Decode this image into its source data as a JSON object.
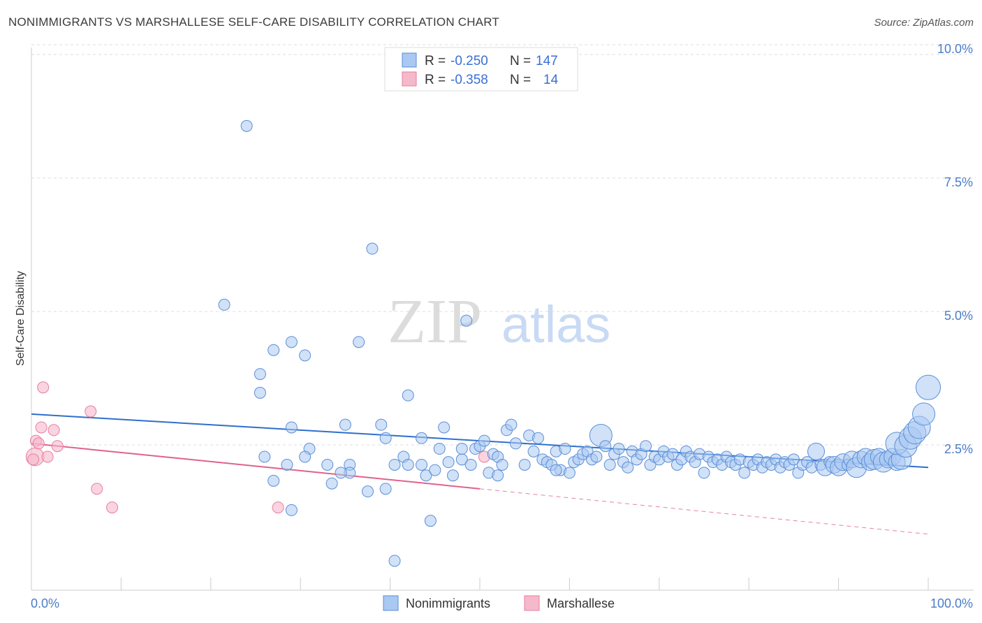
{
  "title": "NONIMMIGRANTS VS MARSHALLESE SELF-CARE DISABILITY CORRELATION CHART",
  "source": "Source: ZipAtlas.com",
  "watermark": {
    "zip": "ZIP",
    "atlas": "atlas"
  },
  "colors": {
    "blue_fill": "#a9c8f2",
    "blue_stroke": "#5b8fd6",
    "blue_line": "#2e6fcc",
    "pink_fill": "#f6b8cb",
    "pink_stroke": "#e67fa0",
    "pink_line": "#e0628c",
    "tick_text": "#4a7cc9",
    "grid": "#dddddd"
  },
  "legend": {
    "rows": [
      {
        "r_label": "R = ",
        "r_value": "-0.250",
        "n_label": "N = ",
        "n_value": "147",
        "color": "blue"
      },
      {
        "r_label": "R = ",
        "r_value": "-0.358",
        "n_label": "N = ",
        "n_value": "14",
        "color": "pink"
      }
    ]
  },
  "bottom_legend": [
    {
      "label": "Nonimmigrants",
      "color": "blue"
    },
    {
      "label": "Marshallese",
      "color": "pink"
    }
  ],
  "chart_data": {
    "type": "scatter",
    "xlabel": "",
    "ylabel": "Self-Care Disability",
    "xlim": [
      0,
      100
    ],
    "ylim": [
      0,
      10.5
    ],
    "x_tick_labels": [
      {
        "value": 0,
        "label": "0.0%"
      },
      {
        "value": 100,
        "label": "100.0%"
      }
    ],
    "y_ticks": [
      {
        "value": 2.5,
        "label": "2.5%"
      },
      {
        "value": 5.0,
        "label": "5.0%"
      },
      {
        "value": 7.5,
        "label": "7.5%"
      },
      {
        "value": 10.0,
        "label": "10.0%"
      }
    ],
    "grid": "horizontal dashed",
    "legend_placement": "top-center",
    "series": [
      {
        "name": "Nonimmigrants",
        "color": "blue",
        "trend": {
          "x": [
            0,
            100
          ],
          "y": [
            3.3,
            2.3
          ]
        },
        "points": [
          [
            24,
            8.7,
            1
          ],
          [
            38,
            6.4,
            1
          ],
          [
            21.5,
            5.35,
            1
          ],
          [
            48.5,
            5.05,
            1
          ],
          [
            27,
            4.5,
            1
          ],
          [
            29,
            4.65,
            1
          ],
          [
            36.5,
            4.65,
            1
          ],
          [
            30.5,
            4.4,
            1
          ],
          [
            25.5,
            4.05,
            1
          ],
          [
            25.5,
            3.7,
            1
          ],
          [
            42,
            3.65,
            1
          ],
          [
            35,
            3.1,
            1
          ],
          [
            39,
            3.1,
            1
          ],
          [
            46,
            3.05,
            1
          ],
          [
            29,
            3.05,
            1
          ],
          [
            39.5,
            2.85,
            1
          ],
          [
            43.5,
            2.85,
            1
          ],
          [
            31,
            2.65,
            1
          ],
          [
            30.5,
            2.5,
            1
          ],
          [
            26,
            2.5,
            1
          ],
          [
            28.5,
            2.35,
            1
          ],
          [
            33,
            2.35,
            1
          ],
          [
            35.5,
            2.35,
            1
          ],
          [
            35.5,
            2.2,
            1
          ],
          [
            34.5,
            2.2,
            1
          ],
          [
            33.5,
            2.0,
            1
          ],
          [
            27,
            2.05,
            1
          ],
          [
            37.5,
            1.85,
            1
          ],
          [
            39.5,
            1.9,
            1
          ],
          [
            29,
            1.5,
            1
          ],
          [
            44.5,
            1.3,
            1
          ],
          [
            40.5,
            0.55,
            1
          ],
          [
            40.5,
            2.35,
            1
          ],
          [
            41.5,
            2.5,
            1
          ],
          [
            42,
            2.35,
            1
          ],
          [
            43.5,
            2.35,
            1
          ],
          [
            44,
            2.15,
            1
          ],
          [
            45,
            2.25,
            1
          ],
          [
            45.5,
            2.65,
            1
          ],
          [
            46.5,
            2.4,
            1
          ],
          [
            47,
            2.15,
            1
          ],
          [
            48,
            2.45,
            1
          ],
          [
            48,
            2.65,
            1
          ],
          [
            49,
            2.35,
            1
          ],
          [
            49.5,
            2.65,
            1
          ],
          [
            50,
            2.7,
            1
          ],
          [
            50.5,
            2.8,
            1
          ],
          [
            51,
            2.2,
            1
          ],
          [
            51.5,
            2.55,
            1
          ],
          [
            52,
            2.5,
            1
          ],
          [
            52.5,
            2.35,
            1
          ],
          [
            53,
            3.0,
            1
          ],
          [
            53.5,
            3.1,
            1
          ],
          [
            54,
            2.75,
            1
          ],
          [
            55,
            2.35,
            1
          ],
          [
            55.5,
            2.9,
            1
          ],
          [
            56,
            2.6,
            1
          ],
          [
            56.5,
            2.85,
            1
          ],
          [
            57,
            2.45,
            1
          ],
          [
            57.5,
            2.4,
            1
          ],
          [
            58,
            2.35,
            1
          ],
          [
            58.5,
            2.6,
            1
          ],
          [
            59,
            2.25,
            1
          ],
          [
            59.5,
            2.65,
            1
          ],
          [
            60,
            2.2,
            1
          ],
          [
            60.5,
            2.4,
            1
          ],
          [
            61,
            2.45,
            1
          ],
          [
            61.5,
            2.55,
            1
          ],
          [
            62,
            2.6,
            1
          ],
          [
            62.5,
            2.45,
            1
          ],
          [
            63,
            2.5,
            1
          ],
          [
            63.5,
            2.9,
            2
          ],
          [
            64,
            2.7,
            1
          ],
          [
            64.5,
            2.35,
            1
          ],
          [
            65,
            2.55,
            1
          ],
          [
            65.5,
            2.65,
            1
          ],
          [
            66,
            2.4,
            1
          ],
          [
            66.5,
            2.3,
            1
          ],
          [
            67,
            2.6,
            1
          ],
          [
            67.5,
            2.45,
            1
          ],
          [
            68,
            2.55,
            1
          ],
          [
            68.5,
            2.7,
            1
          ],
          [
            69,
            2.35,
            1
          ],
          [
            69.5,
            2.5,
            1
          ],
          [
            70,
            2.45,
            1
          ],
          [
            70.5,
            2.6,
            1
          ],
          [
            71,
            2.5,
            1
          ],
          [
            71.5,
            2.55,
            1
          ],
          [
            72,
            2.35,
            1
          ],
          [
            72.5,
            2.45,
            1
          ],
          [
            73,
            2.6,
            1
          ],
          [
            73.5,
            2.5,
            1
          ],
          [
            74,
            2.4,
            1
          ],
          [
            74.5,
            2.55,
            1
          ],
          [
            75,
            2.2,
            1
          ],
          [
            75.5,
            2.5,
            1
          ],
          [
            76,
            2.4,
            1
          ],
          [
            76.5,
            2.45,
            1
          ],
          [
            77,
            2.35,
            1
          ],
          [
            77.5,
            2.5,
            1
          ],
          [
            78,
            2.4,
            1
          ],
          [
            78.5,
            2.35,
            1
          ],
          [
            79,
            2.45,
            1
          ],
          [
            79.5,
            2.2,
            1
          ],
          [
            80,
            2.4,
            1
          ],
          [
            80.5,
            2.35,
            1
          ],
          [
            81,
            2.45,
            1
          ],
          [
            81.5,
            2.3,
            1
          ],
          [
            82,
            2.4,
            1
          ],
          [
            82.5,
            2.35,
            1
          ],
          [
            83,
            2.45,
            1
          ],
          [
            83.5,
            2.3,
            1
          ],
          [
            84,
            2.4,
            1
          ],
          [
            84.5,
            2.35,
            1
          ],
          [
            85,
            2.45,
            1
          ],
          [
            85.5,
            2.2,
            1
          ],
          [
            86,
            2.35,
            1
          ],
          [
            86.5,
            2.4,
            1
          ],
          [
            87,
            2.3,
            1
          ],
          [
            87.5,
            2.6,
            1.5
          ],
          [
            88,
            2.35,
            1
          ],
          [
            88.5,
            2.3,
            1.5
          ],
          [
            89,
            2.4,
            1
          ],
          [
            89.5,
            2.35,
            1.5
          ],
          [
            90,
            2.3,
            1.5
          ],
          [
            90.5,
            2.4,
            1.5
          ],
          [
            91,
            2.35,
            1
          ],
          [
            91.5,
            2.45,
            1.5
          ],
          [
            92,
            2.3,
            1.8
          ],
          [
            92.5,
            2.45,
            1.5
          ],
          [
            93,
            2.5,
            1.5
          ],
          [
            93.5,
            2.4,
            1.5
          ],
          [
            94,
            2.45,
            1.8
          ],
          [
            94.5,
            2.5,
            1.5
          ],
          [
            95,
            2.4,
            1.8
          ],
          [
            95.5,
            2.45,
            1.5
          ],
          [
            96,
            2.5,
            1.5
          ],
          [
            96.5,
            2.4,
            1.5
          ],
          [
            97,
            2.45,
            1.8
          ],
          [
            96.5,
            2.75,
            2
          ],
          [
            97.5,
            2.7,
            2
          ],
          [
            98,
            2.85,
            2
          ],
          [
            98.5,
            2.95,
            2
          ],
          [
            99,
            3.05,
            2
          ],
          [
            99.5,
            3.3,
            2
          ],
          [
            100,
            3.8,
            2.2
          ],
          [
            58.5,
            2.25,
            1
          ],
          [
            52,
            2.15,
            1
          ]
        ]
      },
      {
        "name": "Marshallese",
        "color": "pink",
        "trend": {
          "x": [
            0,
            50
          ],
          "y": [
            2.75,
            1.9
          ]
        },
        "trend_extension": {
          "x": [
            50,
            100
          ],
          "y": [
            1.9,
            1.05
          ]
        },
        "points": [
          [
            1.3,
            3.8,
            1
          ],
          [
            6.6,
            3.35,
            1
          ],
          [
            1.1,
            3.05,
            1
          ],
          [
            2.5,
            3.0,
            1
          ],
          [
            0.5,
            2.8,
            1
          ],
          [
            0.8,
            2.75,
            1
          ],
          [
            2.9,
            2.7,
            1
          ],
          [
            0.4,
            2.5,
            1.6
          ],
          [
            1.8,
            2.5,
            1
          ],
          [
            0.2,
            2.45,
            1
          ],
          [
            7.3,
            1.9,
            1
          ],
          [
            9.0,
            1.55,
            1
          ],
          [
            27.5,
            1.55,
            1
          ],
          [
            50.5,
            2.5,
            1
          ]
        ]
      }
    ]
  }
}
